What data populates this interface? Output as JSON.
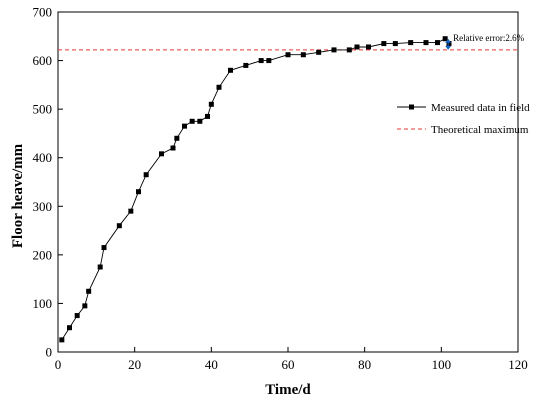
{
  "chart_data": {
    "type": "line",
    "xlabel": "Time/d",
    "ylabel": "Floor heave/mm",
    "xlim": [
      0,
      120
    ],
    "ylim": [
      0,
      700
    ],
    "xticks": [
      0,
      20,
      40,
      60,
      80,
      100,
      120
    ],
    "yticks": [
      0,
      100,
      200,
      300,
      400,
      500,
      600,
      700
    ],
    "grid": false,
    "legend_position": "right",
    "series": [
      {
        "name": "Measured data in field",
        "color": "#000000",
        "marker": "square",
        "x": [
          1,
          3,
          5,
          7,
          8,
          11,
          12,
          16,
          19,
          21,
          23,
          27,
          30,
          31,
          33,
          35,
          37,
          39,
          40,
          42,
          45,
          49,
          53,
          55,
          60,
          64,
          68,
          72,
          76,
          78,
          81,
          85,
          88,
          92,
          96,
          99,
          101,
          102
        ],
        "y": [
          25,
          50,
          75,
          95,
          125,
          175,
          215,
          260,
          290,
          330,
          365,
          408,
          420,
          440,
          465,
          475,
          475,
          485,
          510,
          545,
          580,
          590,
          600,
          600,
          612,
          612,
          617,
          622,
          622,
          628,
          628,
          635,
          635,
          637,
          637,
          637,
          645,
          635
        ]
      }
    ],
    "reference_lines": [
      {
        "name": "Theoretical maximum",
        "axis": "y",
        "value": 622,
        "color": "#e53935",
        "style": "dashed"
      }
    ],
    "annotations": [
      {
        "text": "Relative error:2.6%",
        "x": 101,
        "y_from": 622,
        "y_to": 645
      }
    ]
  }
}
